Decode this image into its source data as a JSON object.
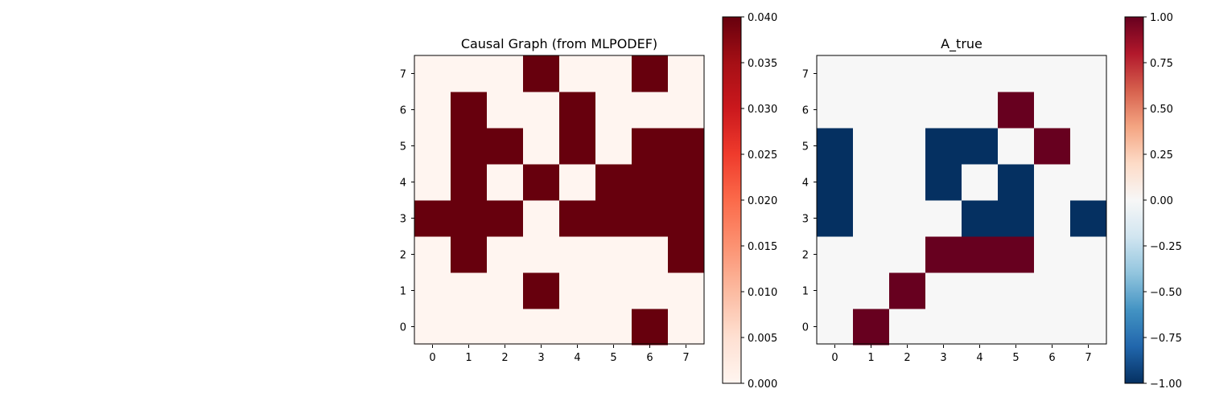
{
  "chart_data": [
    {
      "type": "heatmap",
      "title": "Causal Graph (from MLPODEF)",
      "xlabel": "",
      "ylabel": "",
      "x_ticks": [
        "0",
        "1",
        "2",
        "3",
        "4",
        "5",
        "6",
        "7"
      ],
      "y_ticks": [
        "0",
        "1",
        "2",
        "3",
        "4",
        "5",
        "6",
        "7"
      ],
      "y_origin": "bottom",
      "colormap": "Reds",
      "vmin": 0.0,
      "vmax": 0.04,
      "colorbar_ticks": [
        "0.000",
        "0.005",
        "0.010",
        "0.015",
        "0.020",
        "0.025",
        "0.030",
        "0.035",
        "0.040"
      ],
      "matrix": [
        [
          0,
          0,
          0,
          0,
          0,
          0,
          0.04,
          0
        ],
        [
          0,
          0,
          0,
          0.04,
          0,
          0,
          0,
          0
        ],
        [
          0,
          0.04,
          0,
          0,
          0,
          0,
          0,
          0.04
        ],
        [
          0.04,
          0.04,
          0.04,
          0,
          0.04,
          0.04,
          0.04,
          0.04
        ],
        [
          0,
          0.04,
          0,
          0.04,
          0,
          0.04,
          0.04,
          0.04
        ],
        [
          0,
          0.04,
          0.04,
          0,
          0.04,
          0,
          0.04,
          0.04
        ],
        [
          0,
          0.04,
          0,
          0,
          0.04,
          0,
          0,
          0
        ],
        [
          0,
          0,
          0,
          0.04,
          0,
          0,
          0.04,
          0
        ]
      ]
    },
    {
      "type": "heatmap",
      "title": "A_true",
      "xlabel": "",
      "ylabel": "",
      "x_ticks": [
        "0",
        "1",
        "2",
        "3",
        "4",
        "5",
        "6",
        "7"
      ],
      "y_ticks": [
        "0",
        "1",
        "2",
        "3",
        "4",
        "5",
        "6",
        "7"
      ],
      "y_origin": "bottom",
      "colormap": "RdBu_r",
      "vmin": -1.0,
      "vmax": 1.0,
      "colorbar_ticks": [
        "−1.00",
        "−0.75",
        "−0.50",
        "−0.25",
        "0.00",
        "0.25",
        "0.50",
        "0.75",
        "1.00"
      ],
      "matrix": [
        [
          0,
          1,
          0,
          0,
          0,
          0,
          0,
          0
        ],
        [
          0,
          0,
          1,
          0,
          0,
          0,
          0,
          0
        ],
        [
          0,
          0,
          0,
          1,
          1,
          1,
          0,
          0
        ],
        [
          -1,
          0,
          0,
          0,
          -1,
          -1,
          0,
          -1
        ],
        [
          -1,
          0,
          0,
          -1,
          0,
          -1,
          0,
          0
        ],
        [
          -1,
          0,
          0,
          -1,
          -1,
          0,
          1,
          0
        ],
        [
          0,
          0,
          0,
          0,
          0,
          1,
          0,
          0
        ],
        [
          0,
          0,
          0,
          0,
          0,
          0,
          0,
          0
        ]
      ]
    }
  ]
}
